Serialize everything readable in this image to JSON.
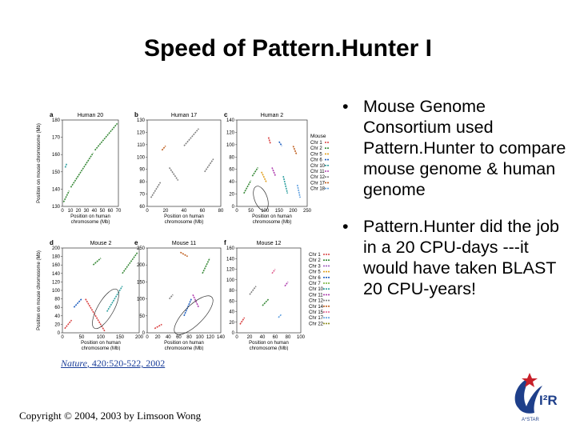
{
  "slide": {
    "title": "Speed of Pattern.Hunter I",
    "bullets": [
      "Mouse Genome Consortium used Pattern.Hunter to compare mouse genome & human genome",
      "Pattern.Hunter did the job in a 20 CPU-days ---it would have taken BLAST 20 CPU-years!"
    ],
    "bullet_glyph": "•",
    "citation": {
      "journal": "Nature",
      "ref": ", 420:520-522, 2002"
    },
    "footer": "Copyright © 2004, 2003 by Limsoon Wong"
  },
  "figure": {
    "panels": [
      {
        "letter": "a",
        "title": "Human 20",
        "ylabel": "Position on mouse chromosome (Mb)",
        "xlabel": "Position on human chromosome (Mb)",
        "yticks": [
          "180",
          "170",
          "160",
          "150",
          "140",
          "130"
        ],
        "xticks": [
          "0",
          "10",
          "20",
          "30",
          "40",
          "50",
          "60",
          "70"
        ]
      },
      {
        "letter": "b",
        "title": "Human 17",
        "ylabel": "",
        "xlabel": "Position on human chromosome (Mb)",
        "yticks": [
          "130",
          "120",
          "110",
          "100",
          "90",
          "80",
          "70",
          "60"
        ],
        "xticks": [
          "0",
          "20",
          "40",
          "60",
          "80"
        ]
      },
      {
        "letter": "c",
        "title": "Human 2",
        "ylabel": "",
        "xlabel": "Position on human chromosome (Mb)",
        "yticks": [
          "140",
          "120",
          "100",
          "80",
          "60",
          "40",
          "20",
          "0"
        ],
        "xticks": [
          "0",
          "50",
          "100",
          "150",
          "200",
          "250"
        ]
      },
      {
        "letter": "d",
        "title": "Mouse 2",
        "ylabel": "Position on mouse chromosome (Mb)",
        "xlabel": "Position on human chromosome (Mb)",
        "yticks": [
          "200",
          "180",
          "160",
          "140",
          "120",
          "100",
          "80",
          "60",
          "40",
          "20",
          "0"
        ],
        "xticks": [
          "0",
          "50",
          "100",
          "150",
          "200"
        ]
      },
      {
        "letter": "e",
        "title": "Mouse 11",
        "ylabel": "",
        "xlabel": "Position on human chromosome (Mb)",
        "yticks": [
          "250",
          "200",
          "150",
          "100",
          "50",
          "0"
        ],
        "xticks": [
          "0",
          "20",
          "40",
          "60",
          "80",
          "100",
          "120",
          "140"
        ]
      },
      {
        "letter": "f",
        "title": "Mouse 12",
        "ylabel": "",
        "xlabel": "Position on human chromosome (Mb)",
        "yticks": [
          "160",
          "140",
          "120",
          "100",
          "80",
          "60",
          "40",
          "20",
          "0"
        ],
        "xticks": [
          "0",
          "20",
          "40",
          "60",
          "80",
          "100"
        ]
      }
    ],
    "legend_top": {
      "title": "Mouse",
      "items": [
        "Chr 1",
        "Chr 2",
        "Chr 5",
        "Chr 6",
        "Chr 10",
        "Chr 11",
        "Chr 12",
        "Chr 17",
        "Chr 18"
      ],
      "colors": [
        "#d94040",
        "#3a8a3a",
        "#e0a020",
        "#2060c0",
        "#30a0a0",
        "#b040b0",
        "#808080",
        "#c06020",
        "#60a0e0"
      ]
    },
    "legend_bottom": {
      "items": [
        "Chr 1",
        "Chr 2",
        "Chr 3",
        "Chr 5",
        "Chr 6",
        "Chr 7",
        "Chr 10",
        "Chr 11",
        "Chr 12",
        "Chr 14",
        "Chr 15",
        "Chr 17",
        "Chr 22"
      ],
      "colors": [
        "#d94040",
        "#3a8a3a",
        "#a060c0",
        "#e0a020",
        "#2060c0",
        "#70b030",
        "#30a0a0",
        "#b040b0",
        "#808080",
        "#c06020",
        "#e06090",
        "#60a0e0",
        "#909020"
      ]
    }
  },
  "logo": {
    "text": "I²R",
    "sub": "A*STAR"
  }
}
